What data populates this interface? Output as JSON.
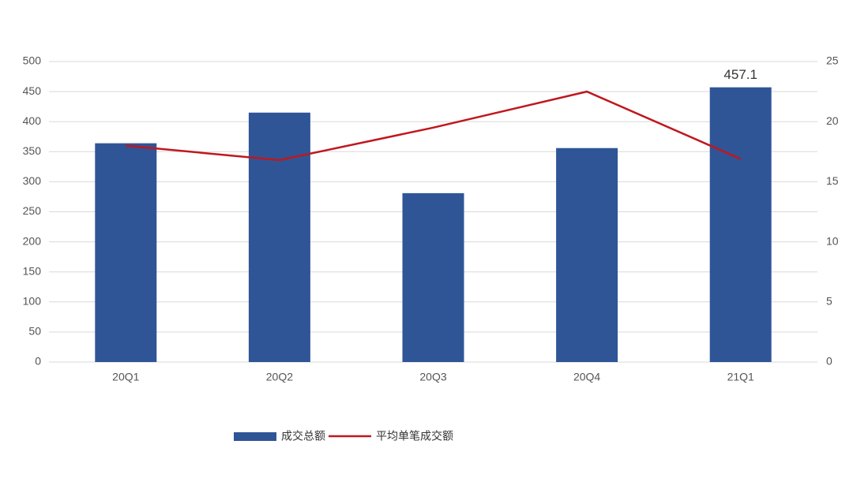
{
  "chart_data": {
    "type": "combo",
    "categories": [
      "20Q1",
      "20Q2",
      "20Q3",
      "20Q4",
      "21Q1"
    ],
    "series": [
      {
        "name": "成交总额",
        "type": "bar",
        "color": "#2f5597",
        "values": [
          364,
          415,
          281,
          356,
          457.1
        ],
        "value_labels": [
          null,
          null,
          null,
          null,
          "457.1"
        ]
      },
      {
        "name": "平均单笔成交额",
        "type": "line",
        "color": "#c0171e",
        "axis": "y2",
        "values": [
          18.0,
          16.8,
          19.5,
          22.5,
          16.9
        ]
      }
    ],
    "ylim": [
      0,
      500
    ],
    "yticks": [
      0,
      50,
      100,
      150,
      200,
      250,
      300,
      350,
      400,
      450,
      500
    ],
    "y2lim": [
      0,
      25
    ],
    "y2ticks": [
      0,
      5,
      10,
      15,
      20,
      25
    ],
    "grid": true,
    "legend": "bottom"
  }
}
